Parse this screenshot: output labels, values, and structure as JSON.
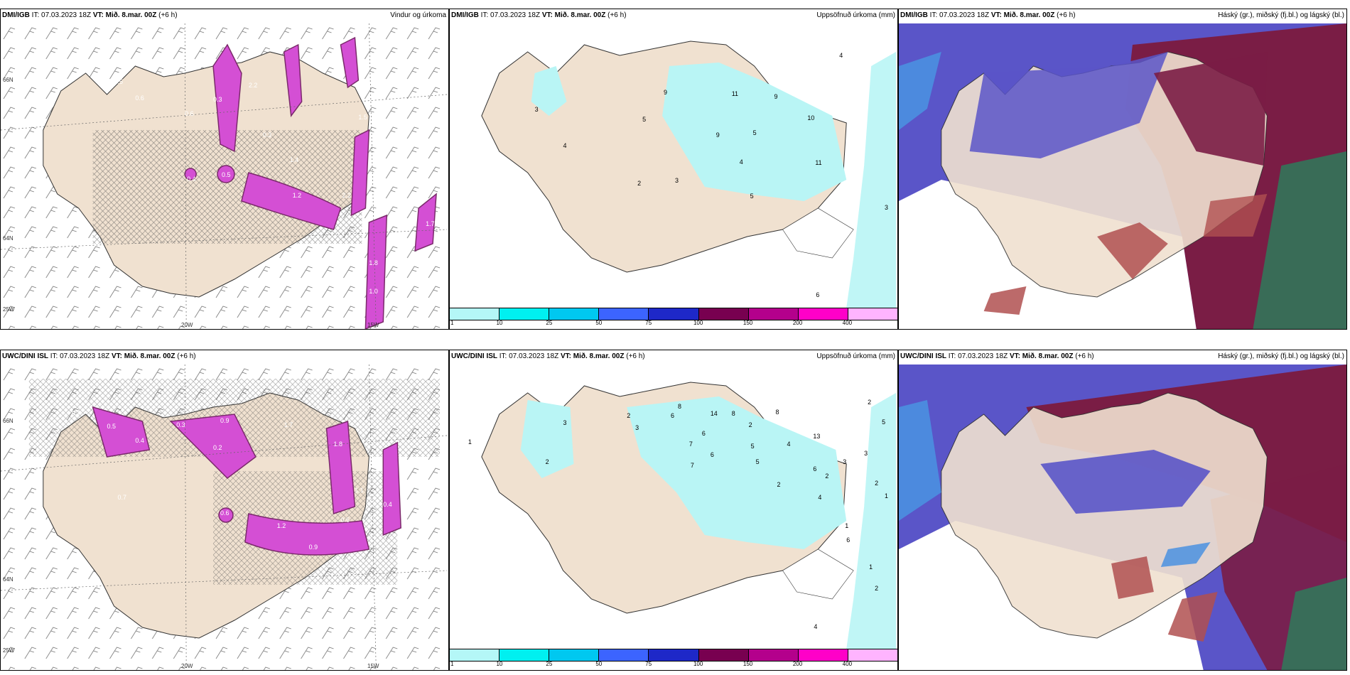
{
  "panels": [
    {
      "id": "p1",
      "model": "DMI/IGB",
      "it_label": "IT:",
      "it": "07.03.2023 18Z",
      "vt_label": "VT:",
      "vt": "Mið. 8.mar. 00Z",
      "lead": "(+6 h)",
      "title": "Vindur og úrkoma",
      "type": "wind"
    },
    {
      "id": "p2",
      "model": "DMI/IGB",
      "it_label": "IT:",
      "it": "07.03.2023 18Z",
      "vt_label": "VT:",
      "vt": "Mið. 8.mar. 00Z",
      "lead": "(+6 h)",
      "title": "Uppsöfnuð úrkoma (mm)",
      "type": "accum"
    },
    {
      "id": "p3",
      "model": "DMI/IGB",
      "it_label": "IT:",
      "it": "07.03.2023 18Z",
      "vt_label": "VT:",
      "vt": "Mið. 8.mar. 00Z",
      "lead": "(+6 h)",
      "title": "Háský (gr.), miðský (fj.bl.) og lágský (bl.)",
      "type": "cloud"
    },
    {
      "id": "p4",
      "model": "UWC/DINI ISL",
      "it_label": "IT:",
      "it": "07.03.2023 18Z",
      "vt_label": "VT:",
      "vt": "Mið. 8.mar. 00Z",
      "lead": "(+6 h)",
      "title": "",
      "type": "wind"
    },
    {
      "id": "p5",
      "model": "UWC/DINI ISL",
      "it_label": "IT:",
      "it": "07.03.2023 18Z",
      "vt_label": "VT:",
      "vt": "Mið. 8.mar. 00Z",
      "lead": "(+6 h)",
      "title": "Uppsöfnuð úrkoma (mm)",
      "type": "accum"
    },
    {
      "id": "p6",
      "model": "UWC/DINI ISL",
      "it_label": "IT:",
      "it": "07.03.2023 18Z",
      "vt_label": "VT:",
      "vt": "Mið. 8.mar. 00Z",
      "lead": "(+6 h)",
      "title": "Háský (gr.), miðský (fj.bl.) og lágský (bl.)",
      "type": "cloud"
    }
  ],
  "axis_labels": {
    "lat66": "66N",
    "lat64": "64N",
    "lon25": "25W",
    "lon20": "20W",
    "lon15": "15W"
  },
  "colorbar": {
    "labels": [
      "1",
      "10",
      "25",
      "50",
      "75",
      "100",
      "150",
      "200",
      "400"
    ],
    "colors": [
      "#b4f7f7",
      "#00f0f0",
      "#00c8f0",
      "#3c64ff",
      "#1e28c8",
      "#780050",
      "#b4008c",
      "#ff00c8",
      "#ffb4ff"
    ]
  },
  "precip_labels_p1": [
    "0.5",
    "0.6",
    "0.6",
    "2.2",
    "0.3",
    "1.4",
    "1.2",
    "2.2",
    "1.5",
    "0.4",
    "0.5",
    "1.7",
    "1.8",
    "1.0",
    "0.3",
    "0.6"
  ],
  "precip_labels_p4": [
    "0.7",
    "0.5",
    "0.4",
    "0.3",
    "0.2",
    "0.9",
    "1.7",
    "1.8",
    "1.1",
    "0.6",
    "1.2",
    "0.5",
    "1.0",
    "0.9",
    "0.7",
    "0.4"
  ],
  "accum_labels_p2": [
    "3",
    "4",
    "5",
    "9",
    "11",
    "9",
    "10",
    "9",
    "5",
    "4",
    "11",
    "2",
    "3",
    "5",
    "4",
    "3",
    "6"
  ],
  "accum_labels_p5": [
    "1",
    "2",
    "3",
    "2",
    "3",
    "6",
    "8",
    "14",
    "8",
    "2",
    "8",
    "5",
    "6",
    "7",
    "7",
    "6",
    "4",
    "13",
    "6",
    "5",
    "2",
    "2",
    "3",
    "3",
    "2",
    "5",
    "4",
    "1",
    "2",
    "6",
    "1",
    "2",
    "4",
    "1"
  ],
  "colors": {
    "land": "#f0e1d0",
    "pink": "#d44fd4",
    "pinkDark": "#7a2a6a",
    "cyan": "#b9f5f5",
    "cloudBlue": "#5a55c8",
    "cloudMaroon": "#7a1d45",
    "cloudRed": "#b05050",
    "cloudGreen": "#2e7a5a",
    "cloudLight": "#4a90e0"
  }
}
